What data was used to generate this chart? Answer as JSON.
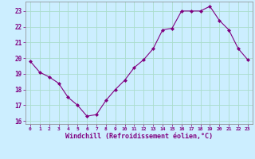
{
  "x": [
    0,
    1,
    2,
    3,
    4,
    5,
    6,
    7,
    8,
    9,
    10,
    11,
    12,
    13,
    14,
    15,
    16,
    17,
    18,
    19,
    20,
    21,
    22,
    23
  ],
  "y": [
    19.8,
    19.1,
    18.8,
    18.4,
    17.5,
    17.0,
    16.3,
    16.4,
    17.3,
    18.0,
    18.6,
    19.4,
    19.9,
    20.6,
    21.8,
    21.9,
    23.0,
    23.0,
    23.0,
    23.3,
    22.4,
    21.8,
    20.6,
    19.9
  ],
  "line_color": "#800080",
  "marker": "D",
  "marker_size": 2,
  "bg_color": "#cceeff",
  "grid_color": "#aaddcc",
  "xlabel": "Windchill (Refroidissement éolien,°C)",
  "xlabel_color": "#800080",
  "tick_color": "#800080",
  "ylim": [
    15.8,
    23.6
  ],
  "yticks": [
    16,
    17,
    18,
    19,
    20,
    21,
    22,
    23
  ],
  "xlim": [
    -0.5,
    23.5
  ],
  "xticks": [
    0,
    1,
    2,
    3,
    4,
    5,
    6,
    7,
    8,
    9,
    10,
    11,
    12,
    13,
    14,
    15,
    16,
    17,
    18,
    19,
    20,
    21,
    22,
    23
  ]
}
